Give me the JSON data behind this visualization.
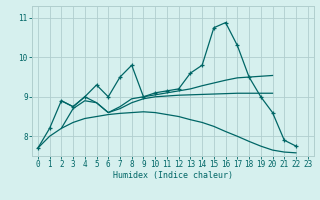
{
  "xlabel": "Humidex (Indice chaleur)",
  "background_color": "#d6f0ee",
  "grid_color": "#b0cece",
  "line_color": "#006666",
  "xlim": [
    -0.5,
    23.5
  ],
  "ylim": [
    7.5,
    11.3
  ],
  "yticks": [
    8,
    9,
    10,
    11
  ],
  "xticks": [
    0,
    1,
    2,
    3,
    4,
    5,
    6,
    7,
    8,
    9,
    10,
    11,
    12,
    13,
    14,
    15,
    16,
    17,
    18,
    19,
    20,
    21,
    22,
    23
  ],
  "lines": [
    {
      "x": [
        0,
        1,
        2,
        3,
        4,
        5,
        6,
        7,
        8,
        9,
        10,
        11,
        12,
        13,
        14,
        15,
        16,
        17,
        18,
        19,
        20,
        21,
        22
      ],
      "y": [
        7.7,
        8.2,
        8.9,
        8.75,
        9.0,
        9.3,
        9.0,
        9.5,
        9.8,
        9.0,
        9.1,
        9.15,
        9.2,
        9.6,
        9.8,
        10.75,
        10.88,
        10.3,
        9.5,
        9.0,
        8.6,
        7.9,
        7.75
      ],
      "with_markers": true
    },
    {
      "x": [
        2,
        3,
        4,
        5,
        6,
        7,
        8,
        9,
        10,
        11,
        12,
        13,
        14,
        15,
        16,
        17,
        18,
        19,
        20
      ],
      "y": [
        8.9,
        8.75,
        9.0,
        8.85,
        8.6,
        8.75,
        8.95,
        9.0,
        9.05,
        9.1,
        9.15,
        9.2,
        9.28,
        9.35,
        9.42,
        9.48,
        9.5,
        9.52,
        9.54
      ],
      "with_markers": false
    },
    {
      "x": [
        2,
        3,
        4,
        5,
        6,
        7,
        8,
        9,
        10,
        11,
        12,
        13,
        14,
        15,
        16,
        17,
        18,
        19,
        20
      ],
      "y": [
        8.2,
        8.7,
        8.9,
        8.85,
        8.6,
        8.7,
        8.85,
        8.95,
        9.0,
        9.02,
        9.04,
        9.05,
        9.06,
        9.07,
        9.08,
        9.09,
        9.09,
        9.09,
        9.09
      ],
      "with_markers": false
    },
    {
      "x": [
        0,
        1,
        2,
        3,
        4,
        5,
        6,
        7,
        8,
        9,
        10,
        11,
        12,
        13,
        14,
        15,
        16,
        17,
        18,
        19,
        20,
        21,
        22
      ],
      "y": [
        7.7,
        8.0,
        8.2,
        8.35,
        8.45,
        8.5,
        8.55,
        8.58,
        8.6,
        8.62,
        8.6,
        8.55,
        8.5,
        8.42,
        8.35,
        8.25,
        8.12,
        8.0,
        7.87,
        7.75,
        7.65,
        7.6,
        7.58
      ],
      "with_markers": false
    }
  ]
}
